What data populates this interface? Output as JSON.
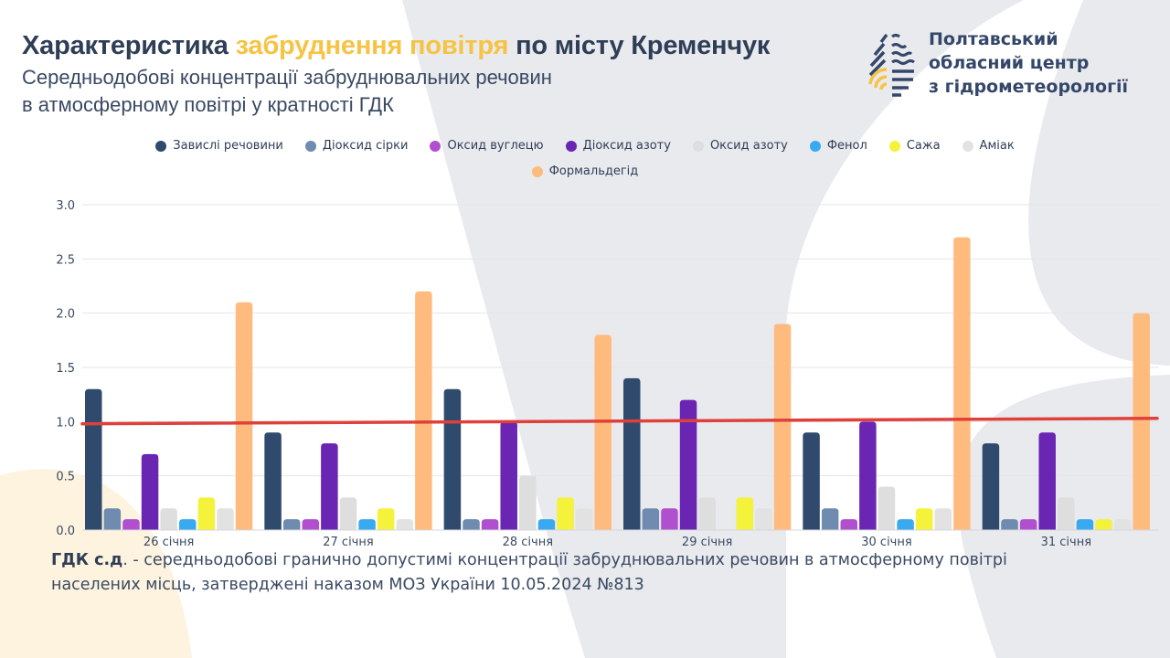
{
  "header": {
    "title_part1": "Характеристика ",
    "title_highlight": "забруднення повітря",
    "title_part2": " по місту Кременчук",
    "subtitle_line1": "Середньодобові концентрації забруднювальних речовин",
    "subtitle_line2": "в атмосферному повітрі у кратності ГДК"
  },
  "organization": {
    "logo_icon": "water-drop-logo-icon",
    "name_line1": "Полтавський",
    "name_line2": "обласний центр",
    "name_line3": "з гідрометеорології"
  },
  "footnote": {
    "term": "ГДК с.д",
    "line1_rest": ". - середньодобові гранично допустимі концентрації забруднювальних речовин в атмосферному повітрі",
    "line2": "населених місць, затверджені наказом МОЗ України 10.05.2024 №813"
  },
  "colors": {
    "title_dark": "#2f3e57",
    "title_highlight": "#f6c344",
    "threshold_line": "#e0403a",
    "background_shape": "#e9eaee",
    "background_accent": "#fdf3de"
  },
  "chart_data": {
    "type": "bar",
    "title": "Середньодобові концентрації забруднювальних речовин в атмосферному повітрі у кратності ГДК",
    "xlabel": "",
    "ylabel": "",
    "ylim": [
      0,
      3.0
    ],
    "yticks": [
      "0.0",
      "0.5",
      "1.0",
      "1.5",
      "2.0",
      "2.5",
      "3.0"
    ],
    "ytick_values": [
      0,
      0.5,
      1.0,
      1.5,
      2.0,
      2.5,
      3.0
    ],
    "grid": true,
    "legend_position": "top-center",
    "categories": [
      "26 січня",
      "27 січня",
      "28 січня",
      "29 січня",
      "30 січня",
      "31 січня"
    ],
    "series": [
      {
        "name": "Завислі речовини",
        "color": "#2f4a6d",
        "values": [
          1.3,
          0.9,
          1.3,
          1.4,
          0.9,
          0.8
        ]
      },
      {
        "name": "Діоксид сірки",
        "color": "#6f8cb0",
        "values": [
          0.2,
          0.1,
          0.1,
          0.2,
          0.2,
          0.1
        ]
      },
      {
        "name": "Оксид вуглецю",
        "color": "#b150cf",
        "values": [
          0.1,
          0.1,
          0.1,
          0.2,
          0.1,
          0.1
        ]
      },
      {
        "name": "Діоксид азоту",
        "color": "#6a25b3",
        "values": [
          0.7,
          0.8,
          1.0,
          1.2,
          1.0,
          0.9
        ]
      },
      {
        "name": "Оксид азоту",
        "color": "#dedede",
        "values": [
          0.2,
          0.3,
          0.5,
          0.3,
          0.4,
          0.3
        ]
      },
      {
        "name": "Фенол",
        "color": "#3aaaf0",
        "values": [
          0.1,
          0.1,
          0.1,
          0,
          0.1,
          0.1
        ]
      },
      {
        "name": "Сажа",
        "color": "#f4f23a",
        "values": [
          0.3,
          0.2,
          0.3,
          0.3,
          0.2,
          0.1
        ]
      },
      {
        "name": "Аміак",
        "color": "#e2e2e2",
        "values": [
          0.2,
          0.1,
          0.2,
          0.2,
          0.2,
          0.1
        ]
      },
      {
        "name": "Формальдегід",
        "color": "#ffbb7e",
        "values": [
          2.1,
          2.2,
          1.8,
          1.9,
          2.7,
          2.0
        ]
      }
    ],
    "threshold": {
      "name": "ГДК",
      "value": 1.0,
      "start_value": 0.98,
      "end_value": 1.03,
      "color": "#e0403a"
    }
  }
}
